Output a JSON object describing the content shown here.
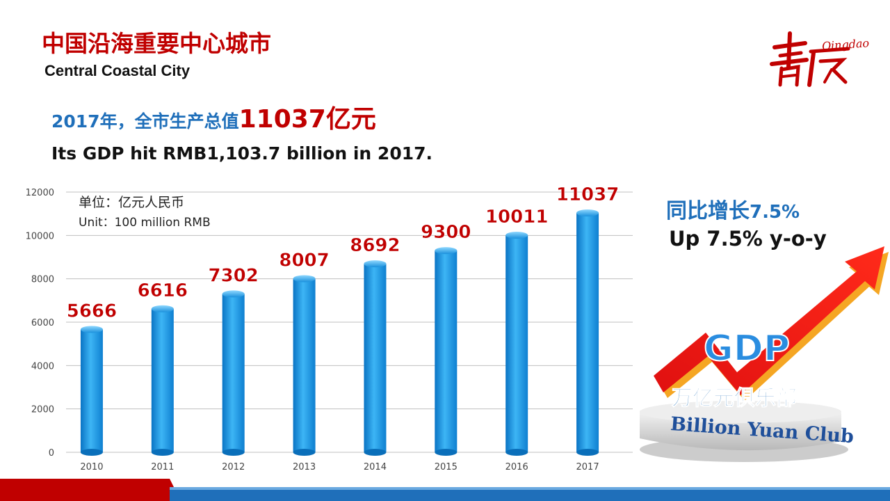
{
  "slide": {
    "title_cn": "中国沿海重要中心城市",
    "title_en": "Central Coastal City",
    "headline_cn_lead": "2017年，全市生产总值",
    "headline_cn_amount": "11037亿元",
    "headline_en": "Its GDP hit RMB1,103.7 billion in 2017."
  },
  "logo": {
    "script_text": "Qingdao"
  },
  "growth": {
    "cn_text": "同比增长",
    "cn_pct": "7.5%",
    "en_text": "Up 7.5% y-o-y"
  },
  "club": {
    "gdp_label": "GDP",
    "cn_label": "万亿元俱乐部",
    "en_label": "Billion Yuan Club"
  },
  "chart_data": {
    "type": "bar",
    "categories": [
      "2010",
      "2011",
      "2012",
      "2013",
      "2014",
      "2015",
      "2016",
      "2017"
    ],
    "values": [
      5666,
      6616,
      7302,
      8007,
      8692,
      9300,
      10011,
      11037
    ],
    "yticks": [
      0,
      2000,
      4000,
      6000,
      8000,
      10000,
      12000
    ],
    "ylim": [
      0,
      12000
    ],
    "grid": true,
    "unit_cn": "单位：亿元人民币",
    "unit_en": "Unit：100 million RMB",
    "colors": {
      "bar": "#1e9be6",
      "data_label": "#c00000",
      "grid": "#bfbfbf"
    }
  },
  "colors": {
    "brand_red": "#c00000",
    "brand_blue": "#1f6fba"
  }
}
